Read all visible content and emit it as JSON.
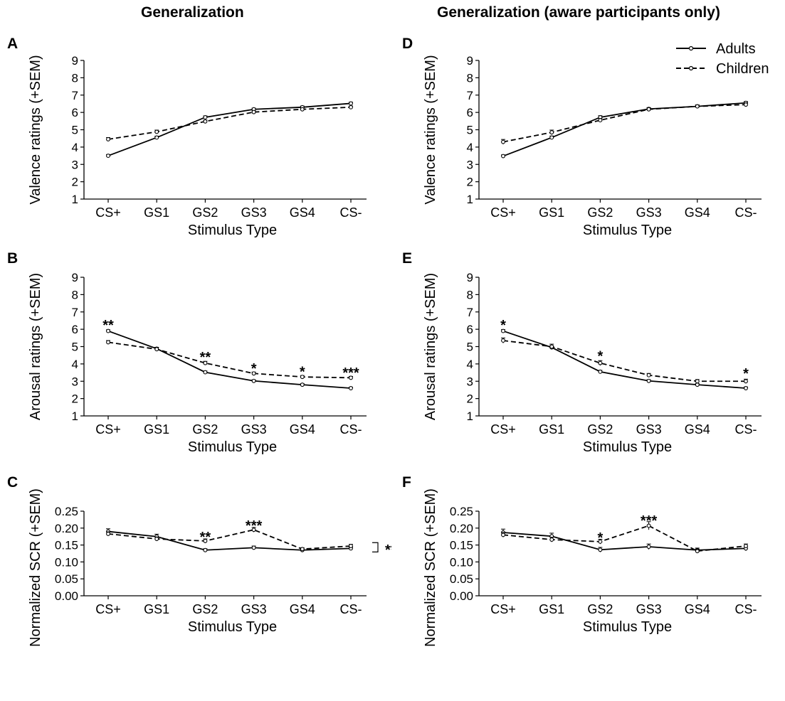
{
  "titles": {
    "left": "Generalization",
    "right": "Generalization (aware participants only)"
  },
  "legend": {
    "adults": "Adults",
    "children": "Children",
    "placement": "top-right of panel D"
  },
  "colors": {
    "ink": "#000000",
    "background": "#ffffff"
  },
  "chart_data": [
    {
      "panel": "A",
      "type": "line",
      "categories": [
        "CS+",
        "GS1",
        "GS2",
        "GS3",
        "GS4",
        "CS-"
      ],
      "xlabel": "Stimulus  Type",
      "ylabel": "Valence ratings (+SEM)",
      "ylim": [
        1,
        9
      ],
      "yticks": [
        "1",
        "2",
        "3",
        "4",
        "5",
        "6",
        "7",
        "8",
        "9"
      ],
      "series": [
        {
          "name": "Adults",
          "values": [
            3.5,
            4.55,
            5.72,
            6.18,
            6.3,
            6.52
          ],
          "sem": [
            0.07,
            0.08,
            0.08,
            0.07,
            0.07,
            0.07
          ]
        },
        {
          "name": "Children",
          "values": [
            4.45,
            4.88,
            5.48,
            6.02,
            6.18,
            6.3
          ],
          "sem": [
            0.1,
            0.1,
            0.08,
            0.07,
            0.07,
            0.07
          ]
        }
      ],
      "annotations": []
    },
    {
      "panel": "B",
      "type": "line",
      "categories": [
        "CS+",
        "GS1",
        "GS2",
        "GS3",
        "GS4",
        "CS-"
      ],
      "xlabel": "Stimulus  Type",
      "ylabel": "Arousal ratings (+SEM)",
      "ylim": [
        1,
        9
      ],
      "yticks": [
        "1",
        "2",
        "3",
        "4",
        "5",
        "6",
        "7",
        "8",
        "9"
      ],
      "series": [
        {
          "name": "Adults",
          "values": [
            5.9,
            4.88,
            3.52,
            3.02,
            2.8,
            2.6
          ],
          "sem": [
            0.07,
            0.08,
            0.07,
            0.06,
            0.06,
            0.06
          ]
        },
        {
          "name": "Children",
          "values": [
            5.25,
            4.85,
            4.05,
            3.45,
            3.25,
            3.2
          ],
          "sem": [
            0.1,
            0.1,
            0.1,
            0.08,
            0.08,
            0.08
          ]
        }
      ],
      "annotations": [
        {
          "category": "CS+",
          "text": "**",
          "y": 6.3
        },
        {
          "category": "GS2",
          "text": "**",
          "y": 4.45
        },
        {
          "category": "GS3",
          "text": "*",
          "y": 3.8
        },
        {
          "category": "GS4",
          "text": "*",
          "y": 3.6
        },
        {
          "category": "CS-",
          "text": "***",
          "y": 3.55
        }
      ]
    },
    {
      "panel": "C",
      "type": "line",
      "categories": [
        "CS+",
        "GS1",
        "GS2",
        "GS3",
        "GS4",
        "CS-"
      ],
      "xlabel": "Stimulus  Type",
      "ylabel": "Normalized  SCR (+SEM)",
      "ylim": [
        0,
        0.25
      ],
      "yticks": [
        "0.00",
        "0.05",
        "0.10",
        "0.15",
        "0.20",
        "0.25"
      ],
      "series": [
        {
          "name": "Adults",
          "values": [
            0.19,
            0.175,
            0.135,
            0.142,
            0.135,
            0.14
          ],
          "sem": [
            0.008,
            0.007,
            0.004,
            0.005,
            0.004,
            0.004
          ]
        },
        {
          "name": "Children",
          "values": [
            0.183,
            0.168,
            0.162,
            0.195,
            0.138,
            0.147
          ],
          "sem": [
            0.006,
            0.006,
            0.006,
            0.007,
            0.004,
            0.005
          ]
        }
      ],
      "annotations": [
        {
          "category": "GS2",
          "text": "**",
          "y": 0.176
        },
        {
          "category": "GS3",
          "text": "***",
          "y": 0.21
        }
      ],
      "bracket": {
        "text": "**",
        "from": 0.14,
        "to": 0.157
      }
    },
    {
      "panel": "D",
      "type": "line",
      "categories": [
        "CS+",
        "GS1",
        "GS2",
        "GS3",
        "GS4",
        "CS-"
      ],
      "xlabel": "Stimulus  Type",
      "ylabel": "Valence ratings (+SEM)",
      "ylim": [
        1,
        9
      ],
      "yticks": [
        "1",
        "2",
        "3",
        "4",
        "5",
        "6",
        "7",
        "8",
        "9"
      ],
      "series": [
        {
          "name": "Adults",
          "values": [
            3.48,
            4.55,
            5.72,
            6.2,
            6.35,
            6.55
          ],
          "sem": [
            0.07,
            0.09,
            0.09,
            0.08,
            0.08,
            0.08
          ]
        },
        {
          "name": "Children",
          "values": [
            4.3,
            4.85,
            5.55,
            6.18,
            6.35,
            6.45
          ],
          "sem": [
            0.14,
            0.13,
            0.1,
            0.08,
            0.08,
            0.1
          ]
        }
      ],
      "annotations": []
    },
    {
      "panel": "E",
      "type": "line",
      "categories": [
        "CS+",
        "GS1",
        "GS2",
        "GS3",
        "GS4",
        "CS-"
      ],
      "xlabel": "Stimulus  Type",
      "ylabel": "Arousal ratings  (+SEM)",
      "ylim": [
        1,
        9
      ],
      "yticks": [
        "1",
        "2",
        "3",
        "4",
        "5",
        "6",
        "7",
        "8",
        "9"
      ],
      "series": [
        {
          "name": "Adults",
          "values": [
            5.9,
            4.95,
            3.55,
            3.02,
            2.8,
            2.6
          ],
          "sem": [
            0.08,
            0.1,
            0.08,
            0.07,
            0.07,
            0.07
          ]
        },
        {
          "name": "Children",
          "values": [
            5.35,
            5.0,
            4.05,
            3.35,
            3.0,
            3.0
          ],
          "sem": [
            0.15,
            0.14,
            0.14,
            0.1,
            0.1,
            0.12
          ]
        }
      ],
      "annotations": [
        {
          "category": "CS+",
          "text": "*",
          "y": 6.3
        },
        {
          "category": "GS2",
          "text": "*",
          "y": 4.5
        },
        {
          "category": "CS-",
          "text": "*",
          "y": 3.5
        }
      ]
    },
    {
      "panel": "F",
      "type": "line",
      "categories": [
        "CS+",
        "GS1",
        "GS2",
        "GS3",
        "GS4",
        "CS-"
      ],
      "xlabel": "Stimulus  Type",
      "ylabel": "Normalized  SCR (+SEM)",
      "ylim": [
        0,
        0.25
      ],
      "yticks": [
        "0.00",
        "0.05",
        "0.10",
        "0.15",
        "0.20",
        "0.25"
      ],
      "series": [
        {
          "name": "Adults",
          "values": [
            0.187,
            0.176,
            0.136,
            0.145,
            0.135,
            0.14
          ],
          "sem": [
            0.01,
            0.009,
            0.007,
            0.008,
            0.006,
            0.007
          ]
        },
        {
          "name": "Children",
          "values": [
            0.18,
            0.166,
            0.16,
            0.207,
            0.132,
            0.147
          ],
          "sem": [
            0.007,
            0.007,
            0.007,
            0.012,
            0.006,
            0.006
          ]
        }
      ],
      "annotations": [
        {
          "category": "GS2",
          "text": "*",
          "y": 0.174
        },
        {
          "category": "GS3",
          "text": "***",
          "y": 0.225
        }
      ]
    }
  ]
}
